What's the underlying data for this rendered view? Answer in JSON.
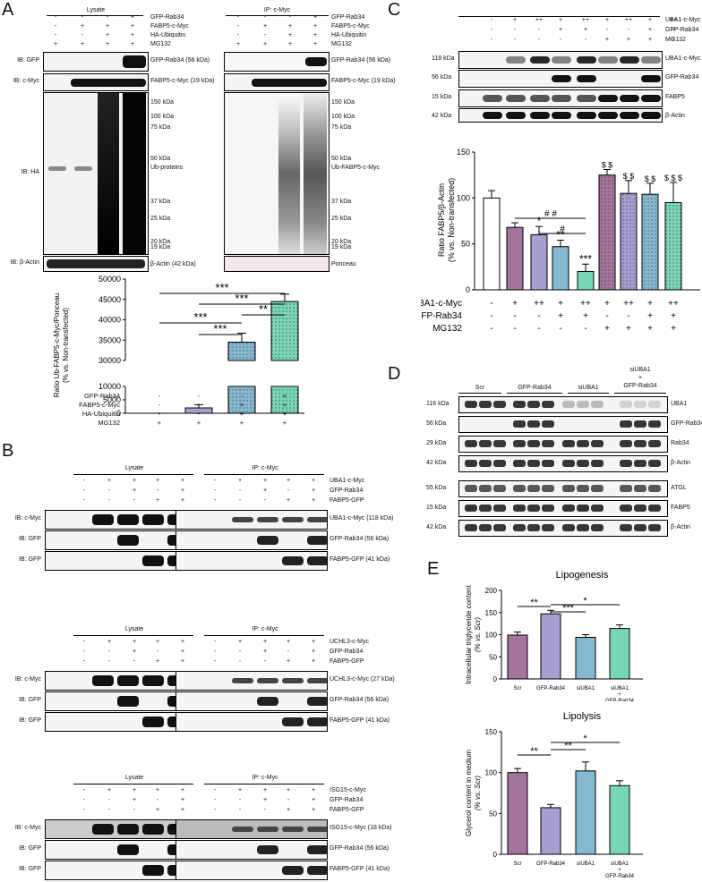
{
  "panels": {
    "A": "A",
    "B": "B",
    "C": "C",
    "D": "D",
    "E": "E"
  },
  "A": {
    "lysate": "Lysate",
    "ip": "IP: c-Myc",
    "rows": [
      "GFP-Rab34",
      "FABP5-c-Myc",
      "HA-Ubiquitin",
      "MG132"
    ],
    "signs": [
      [
        "-",
        "-",
        "-",
        "+"
      ],
      [
        "-",
        "+",
        "+",
        "+"
      ],
      [
        "-",
        "-",
        "+",
        "+"
      ],
      [
        "+",
        "+",
        "+",
        "+"
      ]
    ],
    "ib": [
      "IB: GFP",
      "IB: c-Myc",
      "IB: HA",
      "IB: β-Actin"
    ],
    "left_markers": [
      "GFP-Rab34 (56 kDa)",
      "FABP5-c-Myc (19 kDa)",
      "150 kDa",
      "100 kDa",
      "75 kDa",
      "50 kDa",
      "Ub-proteins",
      "37 kDa",
      "25 kDa",
      "20 kDa",
      "19 kDa",
      "β-Actin (42 kDa)"
    ],
    "right_markers": [
      "GFP-Rab34 (56 kDa)",
      "FABP5-c-Myc (19 kDa)",
      "150 kDa",
      "100 kDa",
      "75 kDa",
      "50 kDa",
      "Ub-FABP5-c-Myc",
      "37 kDa",
      "25 kDa",
      "20 kDa",
      "19 kDa",
      "Ponceau"
    ]
  },
  "A_chart": {
    "ylabel": "Ratio Ub-FABP5-c-Myc/Ponceau",
    "ylabel2": "(% vs. Non-transfected)",
    "ticks_upper": [
      "50000",
      "45000",
      "40000",
      "35000",
      "30000"
    ],
    "ticks_lower": [
      "10000",
      "5000",
      "0"
    ],
    "row_labels": [
      "GFP-Rab34",
      "FABP5-c-Myc",
      "HA-Ubiquitin",
      "MG132"
    ],
    "signs": [
      [
        "-",
        "-",
        "-",
        "+"
      ],
      [
        "-",
        "+",
        "+",
        "+"
      ],
      [
        "-",
        "-",
        "+",
        "+"
      ],
      [
        "+",
        "+",
        "+",
        "+"
      ]
    ],
    "stars": [
      "***",
      "***",
      "**",
      "***",
      "***"
    ],
    "colors": [
      "#ffffff",
      "#a79fd0",
      "#86b8cf",
      "#78d6b4"
    ]
  },
  "B": {
    "groups": [
      {
        "protein": "UBA1-c-Myc",
        "markers": [
          "UBA1-c-Myc (118 kDa)",
          "GFP-Rab34 (56 kDa)",
          "FABP5-GFP (41 kDa)"
        ]
      },
      {
        "protein": "UCHL3-c-Myc",
        "markers": [
          "UCHL3-c-Myc (27 kDa)",
          "GFP-Rab34 (56 kDa)",
          "FABP5-GFP (41 kDa)"
        ]
      },
      {
        "protein": "ISG15-c-Myc",
        "markers": [
          "ISG15-c-Myc (18 kDa)",
          "GFP-Rab34 (56 kDa)",
          "FABP5-GFP (41 kDa)"
        ]
      }
    ],
    "lysate": "Lysate",
    "ip": "IP: c-Myc",
    "rows2": [
      "GFP-Rab34",
      "FABP5-GFP"
    ],
    "ib": [
      "IB: c-Myc",
      "IB: GFP",
      "IB: GFP"
    ],
    "signs": [
      [
        "-",
        "+",
        "+",
        "+",
        "+"
      ],
      [
        "-",
        "-",
        "+",
        "-",
        "+"
      ],
      [
        "-",
        "-",
        "-",
        "+",
        "+"
      ]
    ]
  },
  "C": {
    "rows": [
      "UBA1-c-Myc",
      "GFP-Rab34",
      "MG132"
    ],
    "signs": [
      [
        "-",
        "+",
        "++",
        "+",
        "++",
        "+",
        "++",
        "+",
        "++"
      ],
      [
        "-",
        "-",
        "-",
        "+",
        "+",
        "-",
        "-",
        "+",
        "+"
      ],
      [
        "-",
        "-",
        "-",
        "-",
        "-",
        "+",
        "+",
        "+",
        "+"
      ]
    ],
    "kda": [
      "118 kDa",
      "56 kDa",
      "15 kDa",
      "42 kDa"
    ],
    "markers": [
      "UBA1-c-Myc",
      "GFP-Rab34",
      "FABP5",
      "β-Actin"
    ]
  },
  "C_chart": {
    "ylabel": "Ratio FABP5/β-Actin",
    "ylabel2": "(% vs. Non-transfected)",
    "ticks": [
      "150",
      "100",
      "50",
      "0"
    ],
    "row_labels": [
      "UBA1-c-Myc",
      "GFP-Rab34",
      "MG132"
    ],
    "signs": [
      [
        "-",
        "+",
        "++",
        "+",
        "++",
        "+",
        "++",
        "+",
        "++"
      ],
      [
        "-",
        "-",
        "-",
        "+",
        "+",
        "-",
        "-",
        "+",
        "+"
      ],
      [
        "-",
        "-",
        "-",
        "-",
        "-",
        "+",
        "+",
        "+",
        "+"
      ]
    ],
    "sig": [
      "*",
      "**",
      "***",
      "$ $",
      "$ $",
      "$ $",
      "$ $ $",
      "# #",
      "#"
    ],
    "colors": [
      "#ffffff",
      "#a3749c",
      "#a79fd0",
      "#86b8cf",
      "#78d6b4"
    ]
  },
  "D": {
    "groups": [
      "Scr",
      "GFP-Rab34",
      "siUBA1",
      "siUBA1\n+\nGFP-Rab34"
    ],
    "group_line1": "siUBA1",
    "group_line2": "+",
    "group_line3": "GFP-Rab34",
    "kda": [
      "116 kDa",
      "56 kDa",
      "29 kDa",
      "42 kDa",
      "55 kDa",
      "15 kDa",
      "42 kDa"
    ],
    "markers": [
      "UBA1",
      "GFP-Rab34",
      "Rab34",
      "β-Actin",
      "ATGL",
      "FABP5",
      "β-Actin"
    ]
  },
  "E_lipo": {
    "title": "Lipogenesis",
    "ylabel": "Intracellular triglyceride content",
    "ylabel2": "(% vs. Scr)",
    "ticks": [
      "200",
      "150",
      "100",
      "50",
      "0"
    ],
    "cats": [
      "Scr",
      "GFP-Rab34",
      "siUBA1",
      "siUBA1",
      "+",
      "GFP-Rab34"
    ],
    "stars": [
      "**",
      "***",
      "*"
    ]
  },
  "E_lipolysis": {
    "title": "Lipolysis",
    "ylabel": "Glycerol content in medium",
    "ylabel2": "(% vs. Scr)",
    "ticks": [
      "150",
      "100",
      "50",
      "0"
    ],
    "cats": [
      "Scr",
      "GFP-Rab34",
      "siUBA1",
      "siUBA1",
      "+",
      "GFP-Rab34"
    ],
    "stars": [
      "**",
      "**",
      "*"
    ]
  },
  "chart_data": [
    {
      "type": "bar",
      "title": "",
      "categories": [
        "1",
        "2",
        "3",
        "4"
      ],
      "values": [
        0,
        2000,
        34500,
        44500
      ],
      "errors": [
        0,
        1200,
        2200,
        1800
      ],
      "ylabel": "Ratio Ub-FABP5-c-Myc/Ponceau (% vs. Non-transfected)",
      "ylim": [
        0,
        50000
      ],
      "axis_break": [
        10000,
        30000
      ]
    },
    {
      "type": "bar",
      "title": "",
      "categories": [
        "1",
        "2",
        "3",
        "4",
        "5",
        "6",
        "7",
        "8",
        "9"
      ],
      "values": [
        100,
        68,
        60,
        47,
        20,
        125,
        105,
        104,
        95
      ],
      "errors": [
        8,
        5,
        9,
        7,
        8,
        6,
        14,
        12,
        22
      ],
      "ylabel": "Ratio FABP5/β-Actin (% vs. Non-transfected)",
      "ylim": [
        0,
        150
      ]
    },
    {
      "type": "bar",
      "title": "Lipogenesis",
      "categories": [
        "Scr",
        "GFP-Rab34",
        "siUBA1",
        "siUBA1 + GFP-Rab34"
      ],
      "values": [
        99,
        147,
        94,
        114
      ],
      "errors": [
        7,
        8,
        6,
        8
      ],
      "ylabel": "Intracellular triglyceride content (% vs. Scr)",
      "ylim": [
        0,
        200
      ]
    },
    {
      "type": "bar",
      "title": "Lipolysis",
      "categories": [
        "Scr",
        "GFP-Rab34",
        "siUBA1",
        "siUBA1 + GFP-Rab34"
      ],
      "values": [
        100,
        57,
        102,
        84
      ],
      "errors": [
        5,
        4,
        11,
        6
      ],
      "ylabel": "Glycerol content in medium (% vs. Scr)",
      "ylim": [
        0,
        150
      ]
    }
  ]
}
